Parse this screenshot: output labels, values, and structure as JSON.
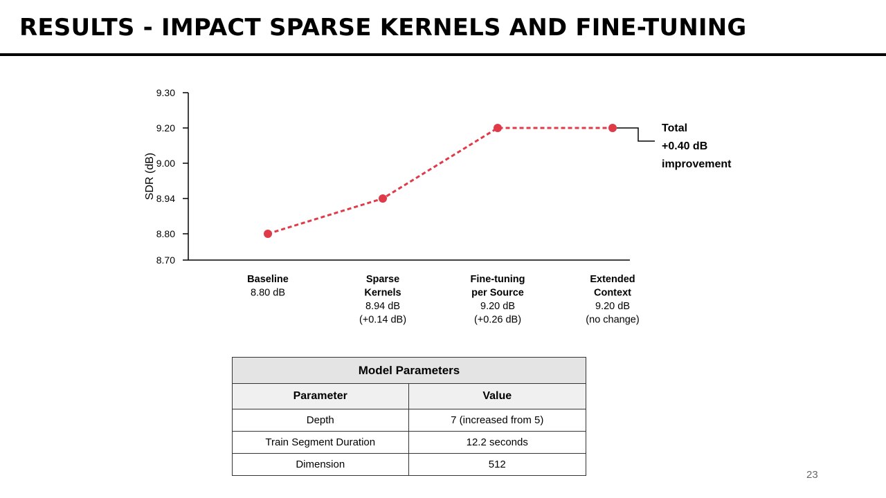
{
  "slide": {
    "title": "RESULTS - IMPACT SPARSE KERNELS AND FINE-TUNING",
    "page_number": "23"
  },
  "chart_data": {
    "type": "line",
    "title": "",
    "xlabel": "",
    "ylabel": "SDR (dB)",
    "ylim": [
      8.7,
      9.3
    ],
    "yticks": [
      8.7,
      8.8,
      8.94,
      9.0,
      9.2,
      9.3
    ],
    "ytick_labels": [
      "8.70",
      "8.80",
      "8.94",
      "9.00",
      "9.20",
      "9.30"
    ],
    "grid": false,
    "series_color": "#e03a48",
    "line_style": "dashed",
    "points": [
      {
        "category_lines": [
          "Baseline"
        ],
        "value": 8.8,
        "label_lines": [
          "8.80 dB"
        ]
      },
      {
        "category_lines": [
          "Sparse",
          "Kernels"
        ],
        "value": 8.94,
        "label_lines": [
          "8.94 dB",
          "(+0.14 dB)"
        ]
      },
      {
        "category_lines": [
          "Fine-tuning",
          "per Source"
        ],
        "value": 9.2,
        "label_lines": [
          "9.20 dB",
          "(+0.26 dB)"
        ]
      },
      {
        "category_lines": [
          "Extended",
          "Context"
        ],
        "value": 9.2,
        "label_lines": [
          "9.20 dB",
          "(no change)"
        ]
      }
    ],
    "annotation": {
      "anchor_point": 3,
      "lines": [
        "Total",
        "+0.40 dB",
        "improvement"
      ]
    }
  },
  "table": {
    "caption": "Model Parameters",
    "headers": [
      "Parameter",
      "Value"
    ],
    "rows": [
      [
        "Depth",
        "7 (increased from 5)"
      ],
      [
        "Train Segment Duration",
        "12.2 seconds"
      ],
      [
        "Dimension",
        "512"
      ]
    ]
  }
}
